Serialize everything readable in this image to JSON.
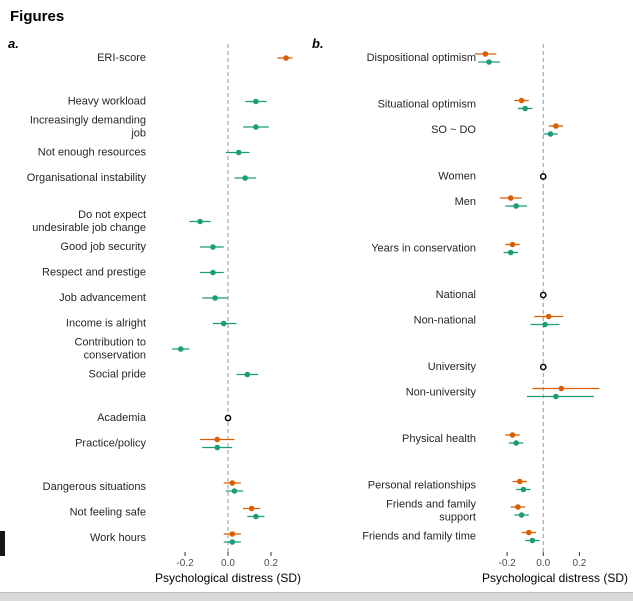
{
  "page": {
    "heading": "Figures"
  },
  "colors": {
    "orange": "#D95F02",
    "green": "#1B9E77",
    "reference": "#000000",
    "zero_line": "#999999",
    "axis_text": "#4d4d4d",
    "label_text": "#262626",
    "bottom_bar": "#d9d9d9",
    "left_marker": "#151515"
  },
  "chart_data": [
    {
      "type": "scatter",
      "subtype": "forest-plot",
      "panel_label": "a.",
      "xlabel": "Psychological distress (SD)",
      "xlim": [
        -0.363,
        0.363
      ],
      "x_ticks": [
        {
          "value": -0.2,
          "label": "-0.2"
        },
        {
          "value": 0.0,
          "label": "0.0"
        },
        {
          "value": 0.2,
          "label": "0.2"
        }
      ],
      "zero_reference_line": true,
      "legend": "none",
      "rows": [
        {
          "label_lines": [
            "ERI-score"
          ],
          "gap_before": false,
          "points": [
            {
              "series": "orange",
              "est": 0.27,
              "lo": 0.23,
              "hi": 0.3
            }
          ]
        },
        {
          "label_lines": [
            "Heavy workload"
          ],
          "gap_before": true,
          "points": [
            {
              "series": "green",
              "est": 0.13,
              "lo": 0.08,
              "hi": 0.18
            }
          ]
        },
        {
          "label_lines": [
            "Increasingly demanding",
            "job"
          ],
          "gap_before": false,
          "points": [
            {
              "series": "green",
              "est": 0.13,
              "lo": 0.07,
              "hi": 0.19
            }
          ]
        },
        {
          "label_lines": [
            "Not enough resources"
          ],
          "gap_before": false,
          "points": [
            {
              "series": "green",
              "est": 0.05,
              "lo": -0.01,
              "hi": 0.1
            }
          ]
        },
        {
          "label_lines": [
            "Organisational instability"
          ],
          "gap_before": false,
          "points": [
            {
              "series": "green",
              "est": 0.08,
              "lo": 0.03,
              "hi": 0.13
            }
          ]
        },
        {
          "label_lines": [
            "Do not expect",
            "undesirable job change"
          ],
          "gap_before": true,
          "points": [
            {
              "series": "green",
              "est": -0.13,
              "lo": -0.18,
              "hi": -0.08
            }
          ]
        },
        {
          "label_lines": [
            "Good job security"
          ],
          "gap_before": false,
          "points": [
            {
              "series": "green",
              "est": -0.07,
              "lo": -0.13,
              "hi": -0.02
            }
          ]
        },
        {
          "label_lines": [
            "Respect and prestige"
          ],
          "gap_before": false,
          "points": [
            {
              "series": "green",
              "est": -0.07,
              "lo": -0.13,
              "hi": -0.02
            }
          ]
        },
        {
          "label_lines": [
            "Job advancement"
          ],
          "gap_before": false,
          "points": [
            {
              "series": "green",
              "est": -0.06,
              "lo": -0.12,
              "hi": 0.0
            }
          ]
        },
        {
          "label_lines": [
            "Income is alright"
          ],
          "gap_before": false,
          "points": [
            {
              "series": "green",
              "est": -0.02,
              "lo": -0.07,
              "hi": 0.04
            }
          ]
        },
        {
          "label_lines": [
            "Contribution to",
            "conservation"
          ],
          "gap_before": false,
          "points": [
            {
              "series": "green",
              "est": -0.22,
              "lo": -0.26,
              "hi": -0.18
            }
          ]
        },
        {
          "label_lines": [
            "Social pride"
          ],
          "gap_before": false,
          "points": [
            {
              "series": "green",
              "est": 0.09,
              "lo": 0.04,
              "hi": 0.14
            }
          ]
        },
        {
          "label_lines": [
            "Academia"
          ],
          "gap_before": true,
          "points": [
            {
              "series": "reference",
              "est": 0,
              "lo": 0,
              "hi": 0
            }
          ]
        },
        {
          "label_lines": [
            "Practice/policy"
          ],
          "gap_before": false,
          "points": [
            {
              "series": "orange",
              "est": -0.05,
              "lo": -0.13,
              "hi": 0.03
            },
            {
              "series": "green",
              "est": -0.05,
              "lo": -0.12,
              "hi": 0.02
            }
          ]
        },
        {
          "label_lines": [
            "Dangerous situations"
          ],
          "gap_before": true,
          "points": [
            {
              "series": "orange",
              "est": 0.02,
              "lo": -0.02,
              "hi": 0.06
            },
            {
              "series": "green",
              "est": 0.03,
              "lo": -0.01,
              "hi": 0.07
            }
          ]
        },
        {
          "label_lines": [
            "Not feeling safe"
          ],
          "gap_before": false,
          "points": [
            {
              "series": "orange",
              "est": 0.11,
              "lo": 0.07,
              "hi": 0.15
            },
            {
              "series": "green",
              "est": 0.13,
              "lo": 0.09,
              "hi": 0.17
            }
          ]
        },
        {
          "label_lines": [
            "Work hours"
          ],
          "gap_before": false,
          "points": [
            {
              "series": "orange",
              "est": 0.02,
              "lo": -0.02,
              "hi": 0.06
            },
            {
              "series": "green",
              "est": 0.02,
              "lo": -0.02,
              "hi": 0.06
            }
          ]
        }
      ]
    },
    {
      "type": "scatter",
      "subtype": "forest-plot",
      "panel_label": "b.",
      "xlabel": "Psychological distress (SD)",
      "xlim": [
        -0.35,
        0.48
      ],
      "x_ticks": [
        {
          "value": -0.2,
          "label": "-0.2"
        },
        {
          "value": 0.0,
          "label": "0.0"
        },
        {
          "value": 0.2,
          "label": "0.2"
        }
      ],
      "zero_reference_line": true,
      "legend": "none",
      "rows": [
        {
          "label_lines": [
            "Dispositional optimism"
          ],
          "gap_before": false,
          "points": [
            {
              "series": "orange",
              "est": -0.32,
              "lo": -0.38,
              "hi": -0.26
            },
            {
              "series": "green",
              "est": -0.3,
              "lo": -0.36,
              "hi": -0.24
            }
          ]
        },
        {
          "label_lines": [
            "Situational optimism"
          ],
          "gap_before": true,
          "points": [
            {
              "series": "orange",
              "est": -0.12,
              "lo": -0.16,
              "hi": -0.08
            },
            {
              "series": "green",
              "est": -0.1,
              "lo": -0.14,
              "hi": -0.06
            }
          ]
        },
        {
          "label_lines": [
            "SO ~ DO"
          ],
          "gap_before": false,
          "points": [
            {
              "series": "orange",
              "est": 0.07,
              "lo": 0.03,
              "hi": 0.11
            },
            {
              "series": "green",
              "est": 0.04,
              "lo": 0.0,
              "hi": 0.08
            }
          ]
        },
        {
          "label_lines": [
            "Women"
          ],
          "gap_before": true,
          "points": [
            {
              "series": "reference",
              "est": 0,
              "lo": 0,
              "hi": 0
            }
          ]
        },
        {
          "label_lines": [
            "Men"
          ],
          "gap_before": false,
          "points": [
            {
              "series": "orange",
              "est": -0.18,
              "lo": -0.24,
              "hi": -0.12
            },
            {
              "series": "green",
              "est": -0.15,
              "lo": -0.21,
              "hi": -0.09
            }
          ]
        },
        {
          "label_lines": [
            "Years in conservation"
          ],
          "gap_before": true,
          "points": [
            {
              "series": "orange",
              "est": -0.17,
              "lo": -0.21,
              "hi": -0.13
            },
            {
              "series": "green",
              "est": -0.18,
              "lo": -0.22,
              "hi": -0.14
            }
          ]
        },
        {
          "label_lines": [
            "National"
          ],
          "gap_before": true,
          "points": [
            {
              "series": "reference",
              "est": 0,
              "lo": 0,
              "hi": 0
            }
          ]
        },
        {
          "label_lines": [
            "Non-national"
          ],
          "gap_before": false,
          "points": [
            {
              "series": "orange",
              "est": 0.03,
              "lo": -0.05,
              "hi": 0.11
            },
            {
              "series": "green",
              "est": 0.01,
              "lo": -0.07,
              "hi": 0.09
            }
          ]
        },
        {
          "label_lines": [
            "University"
          ],
          "gap_before": true,
          "points": [
            {
              "series": "reference",
              "est": 0,
              "lo": 0,
              "hi": 0
            }
          ]
        },
        {
          "label_lines": [
            "Non-university"
          ],
          "gap_before": false,
          "points": [
            {
              "series": "orange",
              "est": 0.1,
              "lo": -0.06,
              "hi": 0.31
            },
            {
              "series": "green",
              "est": 0.07,
              "lo": -0.09,
              "hi": 0.28
            }
          ]
        },
        {
          "label_lines": [
            "Physical health"
          ],
          "gap_before": true,
          "points": [
            {
              "series": "orange",
              "est": -0.17,
              "lo": -0.21,
              "hi": -0.13
            },
            {
              "series": "green",
              "est": -0.15,
              "lo": -0.19,
              "hi": -0.11
            }
          ]
        },
        {
          "label_lines": [
            "Personal relationships"
          ],
          "gap_before": true,
          "points": [
            {
              "series": "orange",
              "est": -0.13,
              "lo": -0.17,
              "hi": -0.09
            },
            {
              "series": "green",
              "est": -0.11,
              "lo": -0.15,
              "hi": -0.07
            }
          ]
        },
        {
          "label_lines": [
            "Friends and family",
            "support"
          ],
          "gap_before": false,
          "points": [
            {
              "series": "orange",
              "est": -0.14,
              "lo": -0.18,
              "hi": -0.1
            },
            {
              "series": "green",
              "est": -0.12,
              "lo": -0.16,
              "hi": -0.08
            }
          ]
        },
        {
          "label_lines": [
            "Friends and family time"
          ],
          "gap_before": false,
          "points": [
            {
              "series": "orange",
              "est": -0.08,
              "lo": -0.12,
              "hi": -0.04
            },
            {
              "series": "green",
              "est": -0.06,
              "lo": -0.1,
              "hi": -0.02
            }
          ]
        }
      ]
    }
  ]
}
